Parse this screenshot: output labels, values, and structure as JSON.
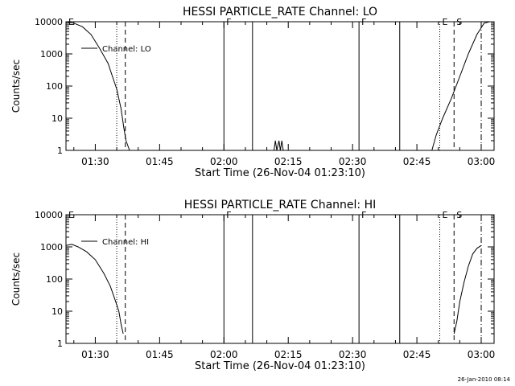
{
  "chart_data": [
    {
      "type": "line",
      "title": "HESSI PARTICLE_RATE Channel: LO",
      "xlabel": "Start Time (26-Nov-04 01:23:10)",
      "ylabel": "Counts/sec",
      "y_scale": "log",
      "ylim": [
        1,
        10000
      ],
      "xlim": [
        "01:23:10",
        "03:03:00"
      ],
      "xticks": [
        "01:30",
        "01:45",
        "02:00",
        "02:15",
        "02:30",
        "02:45",
        "03:00"
      ],
      "yticks": [
        "1",
        "10",
        "100",
        "1000",
        "10000"
      ],
      "legend": "Channel: LO",
      "markers": [
        {
          "label": "E",
          "time": "01:23:10",
          "style": "none"
        },
        {
          "label": "",
          "time": "01:35:00",
          "style": "dotted"
        },
        {
          "label": "",
          "time": "01:37:00",
          "style": "dashed"
        },
        {
          "label": "F",
          "time": "02:00:00",
          "style": "solid"
        },
        {
          "label": "",
          "time": "02:06:40",
          "style": "solid"
        },
        {
          "label": "F",
          "time": "02:31:30",
          "style": "solid"
        },
        {
          "label": "",
          "time": "02:41:00",
          "style": "solid"
        },
        {
          "label": "E",
          "time": "02:50:20",
          "style": "dotted"
        },
        {
          "label": "S",
          "time": "02:53:40",
          "style": "dashed"
        },
        {
          "label": "",
          "time": "03:00:00",
          "style": "dashdot"
        }
      ],
      "series": [
        {
          "name": "Channel: LO",
          "segments": [
            [
              [
                "01:23:10",
                10000
              ],
              [
                "01:25:00",
                9000
              ],
              [
                "01:27:00",
                7000
              ],
              [
                "01:29:00",
                4000
              ],
              [
                "01:31:00",
                1500
              ],
              [
                "01:33:00",
                500
              ],
              [
                "01:34:00",
                200
              ],
              [
                "01:35:00",
                80
              ],
              [
                "01:36:00",
                20
              ],
              [
                "01:36:40",
                5
              ],
              [
                "01:37:10",
                2
              ],
              [
                "01:38:00",
                1
              ]
            ],
            [
              [
                "02:11:40",
                1
              ],
              [
                "02:12:00",
                2
              ],
              [
                "02:12:20",
                1
              ],
              [
                "02:12:50",
                2
              ],
              [
                "02:13:10",
                1
              ],
              [
                "02:13:30",
                2
              ],
              [
                "02:13:50",
                1
              ]
            ],
            [
              [
                "02:48:30",
                1
              ],
              [
                "02:49:30",
                3
              ],
              [
                "02:51:00",
                10
              ],
              [
                "02:53:00",
                40
              ],
              [
                "02:55:00",
                200
              ],
              [
                "02:57:00",
                1000
              ],
              [
                "02:59:00",
                4000
              ],
              [
                "03:00:40",
                9000
              ],
              [
                "03:02:00",
                10000
              ]
            ]
          ]
        }
      ]
    },
    {
      "type": "line",
      "title": "HESSI PARTICLE_RATE Channel: HI",
      "xlabel": "Start Time (26-Nov-04 01:23:10)",
      "ylabel": "Counts/sec",
      "y_scale": "log",
      "ylim": [
        1,
        10000
      ],
      "xlim": [
        "01:23:10",
        "03:03:00"
      ],
      "xticks": [
        "01:30",
        "01:45",
        "02:00",
        "02:15",
        "02:30",
        "02:45",
        "03:00"
      ],
      "yticks": [
        "1",
        "10",
        "100",
        "1000",
        "10000"
      ],
      "legend": "Channel: HI",
      "markers": [
        {
          "label": "E",
          "time": "01:23:10",
          "style": "none"
        },
        {
          "label": "",
          "time": "01:35:00",
          "style": "dotted"
        },
        {
          "label": "",
          "time": "01:37:00",
          "style": "dashed"
        },
        {
          "label": "F",
          "time": "02:00:00",
          "style": "solid"
        },
        {
          "label": "",
          "time": "02:06:40",
          "style": "solid"
        },
        {
          "label": "F",
          "time": "02:31:30",
          "style": "solid"
        },
        {
          "label": "",
          "time": "02:41:00",
          "style": "solid"
        },
        {
          "label": "E",
          "time": "02:50:20",
          "style": "dotted"
        },
        {
          "label": "S",
          "time": "02:53:40",
          "style": "dashed"
        },
        {
          "label": "",
          "time": "03:00:00",
          "style": "dashdot"
        }
      ],
      "series": [
        {
          "name": "Channel: HI",
          "segments": [
            [
              [
                "01:23:10",
                1100
              ],
              [
                "01:24:30",
                1200
              ],
              [
                "01:26:00",
                1000
              ],
              [
                "01:28:00",
                700
              ],
              [
                "01:30:00",
                400
              ],
              [
                "01:32:00",
                150
              ],
              [
                "01:33:30",
                60
              ],
              [
                "01:34:30",
                25
              ],
              [
                "01:35:30",
                10
              ],
              [
                "01:36:00",
                4
              ],
              [
                "01:36:30",
                2
              ]
            ],
            [
              [
                "02:53:40",
                2
              ],
              [
                "02:54:20",
                5
              ],
              [
                "02:55:00",
                20
              ],
              [
                "02:56:00",
                80
              ],
              [
                "02:57:00",
                250
              ],
              [
                "02:58:00",
                600
              ],
              [
                "02:59:00",
                900
              ],
              [
                "03:00:00",
                1100
              ]
            ]
          ]
        }
      ]
    }
  ],
  "footer": "26-Jan-2010 08:14"
}
